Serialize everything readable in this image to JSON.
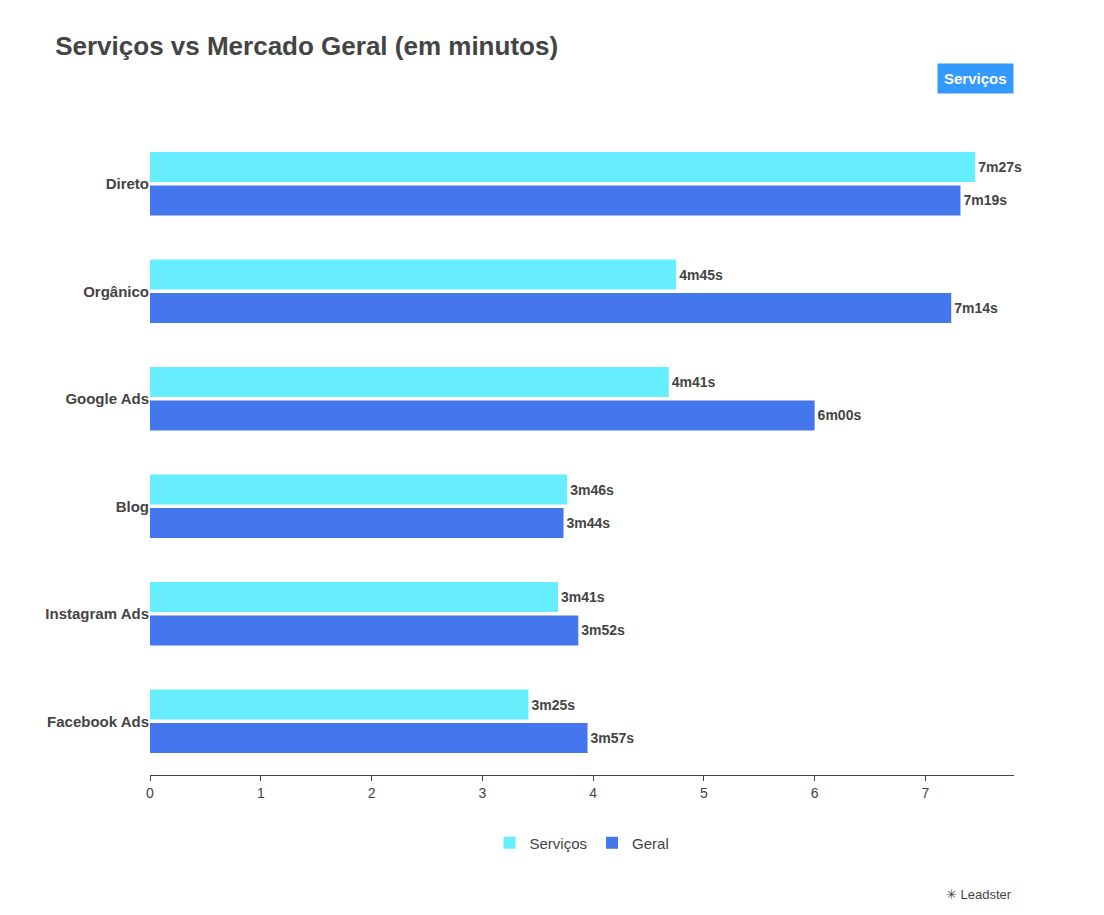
{
  "chart_data": {
    "type": "bar",
    "orientation": "horizontal",
    "title": "Serviços vs Mercado Geral (em minutos)",
    "subtitle": "Serviços",
    "annotations": [
      "✳ Leadster"
    ],
    "categories": [
      "Facebook Ads",
      "Instagram Ads",
      "Blog",
      "Google Ads",
      "Orgânico",
      "Direto"
    ],
    "series": [
      {
        "name": "Serviços",
        "color": "#66EEFF",
        "values": [
          3.4167,
          3.6833,
          3.7667,
          4.6833,
          4.75,
          7.45
        ],
        "value_labels": [
          "3m25s",
          "3m41s",
          "3m46s",
          "4m41s",
          "4m45s",
          "7m27s"
        ]
      },
      {
        "name": "Geral",
        "color": "#4477EE",
        "values": [
          3.95,
          3.8667,
          3.7333,
          6.0,
          7.2333,
          7.3167
        ],
        "value_labels": [
          "3m57s",
          "3m52s",
          "3m44s",
          "6m00s",
          "7m14s",
          "7m19s"
        ]
      }
    ],
    "xlim": [
      0,
      7.8
    ],
    "xticks": [
      0,
      1,
      2,
      3,
      4,
      5,
      6,
      7
    ],
    "data_labels": true,
    "grid": false,
    "legend": "bottom"
  }
}
